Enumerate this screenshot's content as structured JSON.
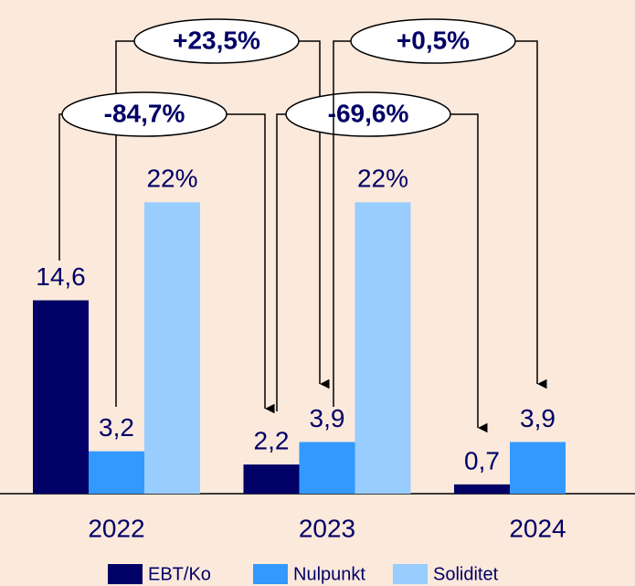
{
  "chart_data": {
    "type": "bar",
    "categories": [
      "2022",
      "2023",
      "2024"
    ],
    "series": [
      {
        "name": "EBT/Ko",
        "color": "#000066",
        "values": [
          14.6,
          2.2,
          0.7
        ],
        "value_labels": [
          "14,6",
          "2,2",
          "0,7"
        ]
      },
      {
        "name": "Nulpunkt",
        "color": "#3399ff",
        "values": [
          3.2,
          3.9,
          3.9
        ],
        "value_labels": [
          "3,2",
          "3,9",
          "3,9"
        ]
      },
      {
        "name": "Soliditet",
        "color": "#99ccff",
        "values": [
          22,
          22,
          null
        ],
        "value_labels": [
          "22%",
          "22%",
          null
        ]
      }
    ],
    "ylim": [
      0,
      37
    ],
    "annotations": [
      "+23,5%",
      "-84,7%",
      "-69,6%",
      "+0,5%"
    ]
  }
}
